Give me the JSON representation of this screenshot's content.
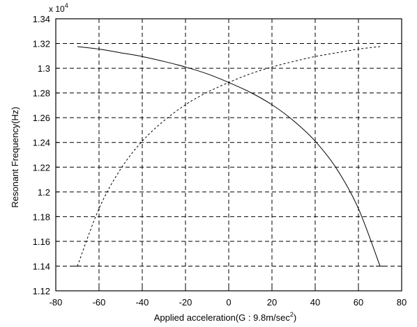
{
  "chart_data": {
    "type": "line",
    "title": "",
    "xlabel": "Applied acceleration(G : 9.8m/sec",
    "xlabel_superscript": "2",
    "xlabel_suffix": ")",
    "ylabel": "Resonant Frequency(Hz)",
    "y_multiplier": "x 10",
    "y_multiplier_exponent": "4",
    "xlim": [
      -80,
      80
    ],
    "ylim": [
      1.12,
      1.34
    ],
    "y_scale_note": "values shown ×10^4 Hz",
    "x_ticks": [
      -80,
      -60,
      -40,
      -20,
      0,
      20,
      40,
      60,
      80
    ],
    "x_tick_labels": [
      "-80",
      "-60",
      "-40",
      "-20",
      "0",
      "20",
      "40",
      "60",
      "80"
    ],
    "y_ticks": [
      1.12,
      1.14,
      1.16,
      1.18,
      1.2,
      1.22,
      1.24,
      1.26,
      1.28,
      1.3,
      1.32,
      1.34
    ],
    "y_tick_labels": [
      "1.12",
      "1.14",
      "1.16",
      "1.18",
      "1.2",
      "1.22",
      "1.24",
      "1.26",
      "1.28",
      "1.3",
      "1.32",
      "1.34"
    ],
    "grid": true,
    "legend": "none",
    "series": [
      {
        "style": "solid",
        "color": "#000000",
        "x": [
          -70,
          -60,
          -50,
          -40,
          -30,
          -20,
          -10,
          0,
          10,
          20,
          30,
          40,
          50,
          60,
          70
        ],
        "y": [
          1.3175,
          1.3155,
          1.3125,
          1.3095,
          1.3055,
          1.301,
          1.2955,
          1.2885,
          1.2805,
          1.2705,
          1.2575,
          1.241,
          1.2185,
          1.1865,
          1.14
        ]
      },
      {
        "style": "dashed",
        "color": "#000000",
        "x": [
          -70,
          -60,
          -50,
          -40,
          -30,
          -20,
          -10,
          0,
          10,
          20,
          30,
          40,
          50,
          60,
          70
        ],
        "y": [
          1.14,
          1.1865,
          1.2185,
          1.241,
          1.2575,
          1.2705,
          1.2805,
          1.2885,
          1.2955,
          1.301,
          1.3055,
          1.3095,
          1.3125,
          1.3155,
          1.3175
        ]
      }
    ]
  }
}
